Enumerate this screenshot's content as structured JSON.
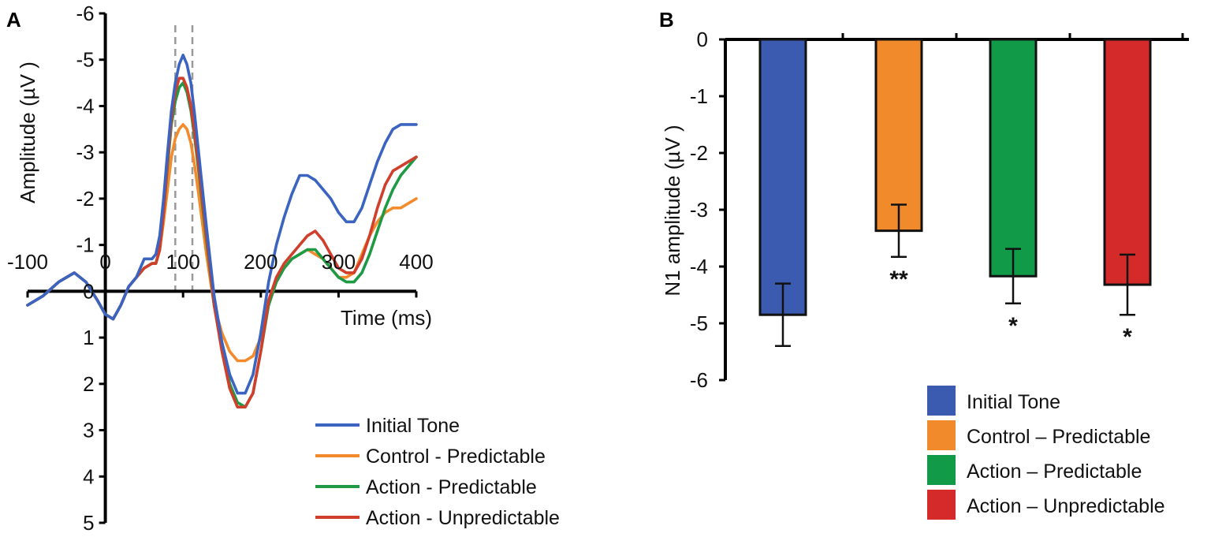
{
  "chart_data": [
    {
      "panel": "A",
      "type": "line",
      "xlabel": "Time (ms)",
      "ylabel": "Amplitude (µV )",
      "xlim": [
        -100,
        400
      ],
      "ylim": [
        -6,
        5
      ],
      "y_inverted": true,
      "xticks": [
        "-100",
        "0",
        "100",
        "200",
        "300",
        "400"
      ],
      "yticks": [
        "-6",
        "-5",
        "-4",
        "-3",
        "-2",
        "-1",
        "0",
        "1",
        "2",
        "3",
        "4",
        "5"
      ],
      "highlight_window_ms": [
        90,
        112
      ],
      "legend": [
        "Initial Tone",
        "Control - Predictable",
        "Action - Predictable",
        "Action - Unpredictable"
      ],
      "series": [
        {
          "name": "Initial Tone",
          "color": "#3b63c0",
          "x": [
            -100,
            -80,
            -60,
            -40,
            -25,
            -10,
            0,
            10,
            20,
            30,
            40,
            50,
            60,
            65,
            70,
            75,
            80,
            85,
            90,
            95,
            100,
            105,
            110,
            115,
            120,
            130,
            140,
            150,
            160,
            170,
            180,
            190,
            200,
            210,
            220,
            230,
            240,
            250,
            260,
            270,
            280,
            290,
            300,
            310,
            320,
            330,
            340,
            350,
            360,
            370,
            380,
            390,
            400
          ],
          "y": [
            0.3,
            0.1,
            -0.2,
            -0.4,
            -0.2,
            0.2,
            0.5,
            0.6,
            0.3,
            -0.1,
            -0.3,
            -0.7,
            -0.7,
            -0.8,
            -1.2,
            -2.0,
            -3.0,
            -3.9,
            -4.5,
            -4.9,
            -5.1,
            -4.9,
            -4.5,
            -3.8,
            -3.0,
            -1.4,
            0.1,
            1.1,
            1.8,
            2.2,
            2.2,
            1.8,
            0.9,
            -0.2,
            -1.0,
            -1.6,
            -2.1,
            -2.5,
            -2.5,
            -2.4,
            -2.2,
            -2.0,
            -1.7,
            -1.5,
            -1.5,
            -1.8,
            -2.3,
            -2.8,
            -3.2,
            -3.5,
            -3.6,
            -3.6,
            -3.6
          ]
        },
        {
          "name": "Control - Predictable",
          "color": "#f38a2b",
          "x": [
            -100,
            -80,
            -60,
            -40,
            -25,
            -10,
            0,
            10,
            20,
            30,
            40,
            50,
            60,
            65,
            70,
            75,
            80,
            85,
            90,
            95,
            100,
            105,
            110,
            115,
            120,
            130,
            140,
            150,
            160,
            170,
            180,
            190,
            200,
            210,
            220,
            230,
            240,
            250,
            260,
            270,
            280,
            290,
            300,
            310,
            320,
            330,
            340,
            350,
            360,
            370,
            380,
            390,
            400
          ],
          "y": [
            0.3,
            0.1,
            -0.2,
            -0.4,
            -0.2,
            0.2,
            0.5,
            0.6,
            0.3,
            -0.1,
            -0.3,
            -0.5,
            -0.6,
            -0.6,
            -0.9,
            -1.5,
            -2.2,
            -2.9,
            -3.3,
            -3.5,
            -3.6,
            -3.5,
            -3.2,
            -2.7,
            -2.1,
            -0.8,
            0.3,
            0.9,
            1.3,
            1.5,
            1.5,
            1.4,
            1.0,
            0.3,
            -0.2,
            -0.5,
            -0.7,
            -0.8,
            -0.9,
            -0.8,
            -0.7,
            -0.5,
            -0.3,
            -0.3,
            -0.4,
            -0.8,
            -1.2,
            -1.5,
            -1.7,
            -1.8,
            -1.8,
            -1.9,
            -2.0
          ]
        },
        {
          "name": "Action - Predictable",
          "color": "#1e9a45",
          "x": [
            -100,
            -80,
            -60,
            -40,
            -25,
            -10,
            0,
            10,
            20,
            30,
            40,
            50,
            60,
            65,
            70,
            75,
            80,
            85,
            90,
            95,
            100,
            105,
            110,
            115,
            120,
            130,
            140,
            150,
            160,
            170,
            180,
            190,
            200,
            210,
            220,
            230,
            240,
            250,
            260,
            270,
            280,
            290,
            300,
            310,
            320,
            330,
            340,
            350,
            360,
            370,
            380,
            390,
            400
          ],
          "y": [
            0.3,
            0.1,
            -0.2,
            -0.4,
            -0.2,
            0.2,
            0.5,
            0.6,
            0.3,
            -0.1,
            -0.3,
            -0.5,
            -0.6,
            -0.6,
            -0.9,
            -1.7,
            -2.7,
            -3.6,
            -4.1,
            -4.4,
            -4.5,
            -4.3,
            -3.9,
            -3.3,
            -2.6,
            -1.1,
            0.3,
            1.2,
            2.0,
            2.4,
            2.5,
            2.2,
            1.3,
            0.3,
            -0.2,
            -0.5,
            -0.7,
            -0.8,
            -0.9,
            -0.9,
            -0.7,
            -0.5,
            -0.3,
            -0.2,
            -0.2,
            -0.4,
            -0.8,
            -1.3,
            -1.8,
            -2.2,
            -2.5,
            -2.7,
            -2.9
          ]
        },
        {
          "name": "Action - Unpredictable",
          "color": "#d03f2b",
          "x": [
            -100,
            -80,
            -60,
            -40,
            -25,
            -10,
            0,
            10,
            20,
            30,
            40,
            50,
            60,
            65,
            70,
            75,
            80,
            85,
            90,
            95,
            100,
            105,
            110,
            115,
            120,
            130,
            140,
            150,
            160,
            170,
            180,
            190,
            200,
            210,
            220,
            230,
            240,
            250,
            260,
            270,
            280,
            290,
            300,
            310,
            320,
            330,
            340,
            350,
            360,
            370,
            380,
            390,
            400
          ],
          "y": [
            0.3,
            0.1,
            -0.2,
            -0.4,
            -0.2,
            0.2,
            0.5,
            0.6,
            0.3,
            -0.1,
            -0.3,
            -0.5,
            -0.6,
            -0.6,
            -0.9,
            -1.7,
            -2.8,
            -3.7,
            -4.3,
            -4.6,
            -4.6,
            -4.4,
            -4.0,
            -3.4,
            -2.7,
            -1.2,
            0.3,
            1.3,
            2.1,
            2.5,
            2.5,
            2.2,
            1.3,
            0.2,
            -0.3,
            -0.6,
            -0.8,
            -1.0,
            -1.2,
            -1.3,
            -1.1,
            -0.8,
            -0.5,
            -0.4,
            -0.4,
            -0.7,
            -1.2,
            -1.8,
            -2.3,
            -2.6,
            -2.7,
            -2.8,
            -2.9
          ]
        }
      ]
    },
    {
      "panel": "B",
      "type": "bar",
      "ylabel": "N1 amplitude (µV )",
      "ylim": [
        -6,
        0
      ],
      "yticks": [
        "0",
        "-1",
        "-2",
        "-3",
        "-4",
        "-5",
        "-6"
      ],
      "categories": [
        "Initial Tone",
        "Control – Predictable",
        "Action – Predictable",
        "Action – Unpredictable"
      ],
      "values": [
        -4.85,
        -3.37,
        -4.17,
        -4.32
      ],
      "errors": [
        0.55,
        0.46,
        0.48,
        0.53
      ],
      "colors": [
        "#3b5bb0",
        "#f08a2a",
        "#119a48",
        "#d42a2a"
      ],
      "significance": [
        "",
        "**",
        "*",
        "*"
      ],
      "legend": [
        "Initial Tone",
        "Control – Predictable",
        "Action – Predictable",
        "Action – Unpredictable"
      ]
    }
  ],
  "panels": {
    "a_label": "A",
    "b_label": "B"
  }
}
